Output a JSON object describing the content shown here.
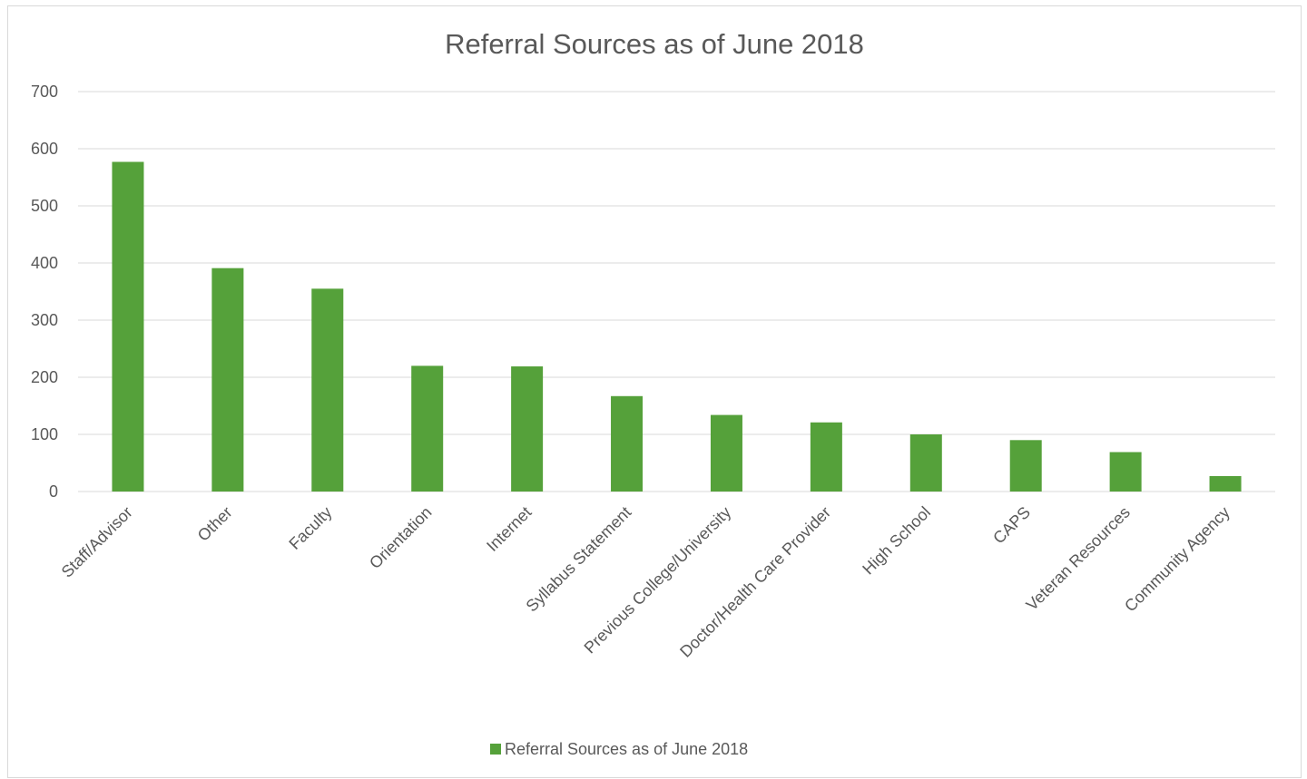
{
  "chart_data": {
    "type": "bar",
    "title": "Referral Sources as of June 2018",
    "xlabel": "",
    "ylabel": "",
    "ylim": [
      0,
      700
    ],
    "yticks": [
      0,
      100,
      200,
      300,
      400,
      500,
      600,
      700
    ],
    "grid": true,
    "legend_position": "bottom",
    "bar_color": "#55a13a",
    "categories": [
      "Staff/Advisor",
      "Other",
      "Faculty",
      "Orientation",
      "Internet",
      "Syllabus Statement",
      "Previous College/University",
      "Doctor/Health Care Provider",
      "High School",
      "CAPS",
      "Veteran Resources",
      "Community  Agency"
    ],
    "series": [
      {
        "name": "Referral Sources as of June 2018",
        "values": [
          577,
          391,
          355,
          220,
          219,
          167,
          134,
          121,
          100,
          90,
          69,
          27
        ]
      }
    ]
  }
}
